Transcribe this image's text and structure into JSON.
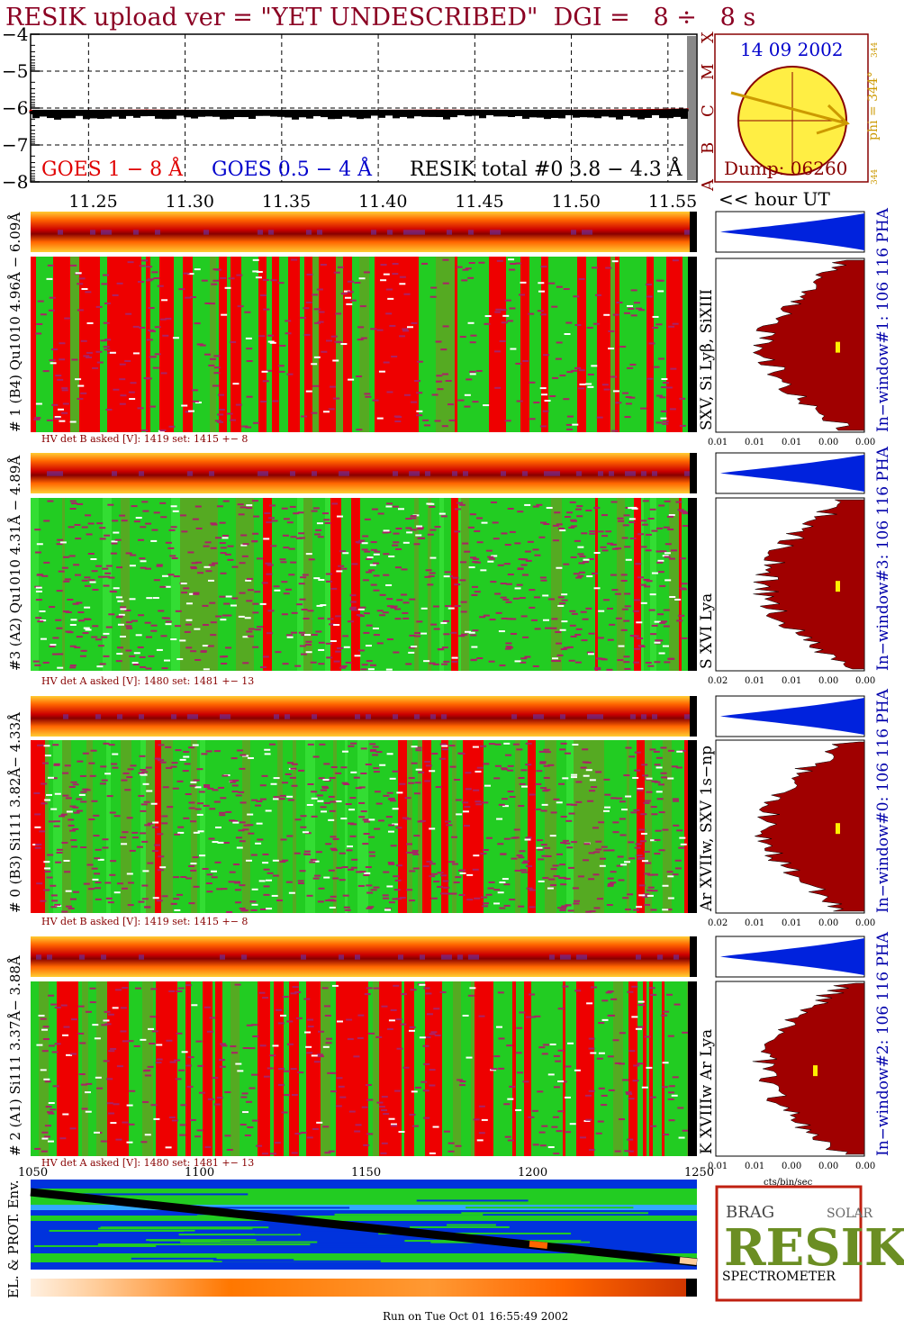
{
  "title": "RESIK upload ver = \"YET UNDESCRIBED\"  DGI =   8 ÷   8 s",
  "goes": {
    "y_ticks": [
      "−4",
      "−5",
      "−6",
      "−7",
      "−8"
    ],
    "class_letters": [
      "X",
      "M",
      "C",
      "B",
      "A"
    ],
    "legend_goes18": "GOES 1 − 8 Å",
    "legend_goes054": "GOES 0.5 − 4 Å",
    "legend_resik": "RESIK total #0  3.8 − 4.3 Å",
    "colors": {
      "goes18": "#e00000",
      "goes054": "#0000cc",
      "resik": "#000000"
    }
  },
  "sun": {
    "date": "14 09 2002",
    "phi_label": "phi = 344°",
    "phi_sub": "344",
    "phi_small": "344",
    "dump": "Dump: 06260",
    "fill": "#ffee44",
    "outline": "#880000",
    "arrow": "#cc9900"
  },
  "time_axis": {
    "ticks": [
      "11.25",
      "11.30",
      "11.35",
      "11.40",
      "11.45",
      "11.50",
      "11.55"
    ],
    "caption": "<< hour UT"
  },
  "channels": [
    {
      "left_label": "# 1 (B4) Qu1010 4.96Å − 6.09Å",
      "right_label": "SXV, Si Lyβ, SiXIII",
      "pha_label": "In−window#1:  106 116 PHA",
      "hv_text": "HV det B asked [V]:  1419 set:  1415  +−   8",
      "pha_ticks": [
        "0.01",
        "0.01",
        "0.01",
        "0.00",
        "0.00"
      ],
      "dominant": "red"
    },
    {
      "left_label": "#3 (A2) Qu1010  4.31Å − 4.89Å",
      "right_label": "S XVI Lya",
      "pha_label": "In−window#3:  106 116 PHA",
      "hv_text": "HV det A asked [V]:  1480 set:  1481  +−   13",
      "pha_ticks": [
        "0.02",
        "0.01",
        "0.01",
        "0.00",
        "0.00"
      ],
      "dominant": "green"
    },
    {
      "left_label": "# 0 (B3) Si111  3.82Å− 4.33Å",
      "right_label": "Ar XVIIw,  SXV 1s−np",
      "pha_label": "In−window#0:  106 116 PHA",
      "hv_text": "HV det B asked [V]:  1419 set:  1415  +−   8",
      "pha_ticks": [
        "0.02",
        "0.01",
        "0.01",
        "0.00",
        "0.00"
      ],
      "dominant": "green"
    },
    {
      "left_label": "# 2 (A1) Si111  3.37Å− 3.88Å",
      "right_label": "K XVIIIw  Ar Lya",
      "pha_label": "In−window#2:  106 116 PHA",
      "hv_text": "HV det A asked [V]:  1480 set:  1481  +−   13",
      "pha_ticks": [
        "0.01",
        "0.01",
        "0.00",
        "0.00",
        "0.00"
      ],
      "dominant": "red"
    }
  ],
  "pha_axis_caption": "cts/bin/sec",
  "env": {
    "label": "EL. & PROT. Env.",
    "ticks": [
      "1050",
      "1100",
      "1150",
      "1200",
      "1250"
    ]
  },
  "logo": {
    "big": "RESIK",
    "small_left": "BRAG",
    "small_right": "SOLAR",
    "bottom": "SPECTROMETER"
  },
  "footer": "Run on Tue Oct 01 16:55:49 2002",
  "chart_data": {
    "type": "line",
    "title": "RESIK upload ver = \"YET UNDESCRIBED\"  DGI =   8 ÷   8 s",
    "xlabel": "<< hour UT",
    "ylabel": "",
    "xlim": [
      11.22,
      11.565
    ],
    "ylim": [
      -8,
      -4
    ],
    "x": [
      11.22,
      11.25,
      11.28,
      11.31,
      11.34,
      11.37,
      11.4,
      11.43,
      11.46,
      11.49,
      11.52,
      11.55,
      11.56
    ],
    "series": [
      {
        "name": "GOES 1 − 8 Å",
        "values": [
          -6.08,
          -6.08,
          -6.07,
          -6.08,
          -6.09,
          -6.08,
          -6.08,
          -6.07,
          -6.08,
          -6.08,
          -6.07,
          -6.05,
          -6.04
        ]
      },
      {
        "name": "RESIK total #0  3.8 − 4.3 Å",
        "values": [
          -6.12,
          -6.14,
          -6.13,
          -6.13,
          -6.15,
          -6.14,
          -6.13,
          -6.12,
          -6.14,
          -6.13,
          -6.12,
          -6.08,
          -6.06
        ]
      }
    ]
  }
}
